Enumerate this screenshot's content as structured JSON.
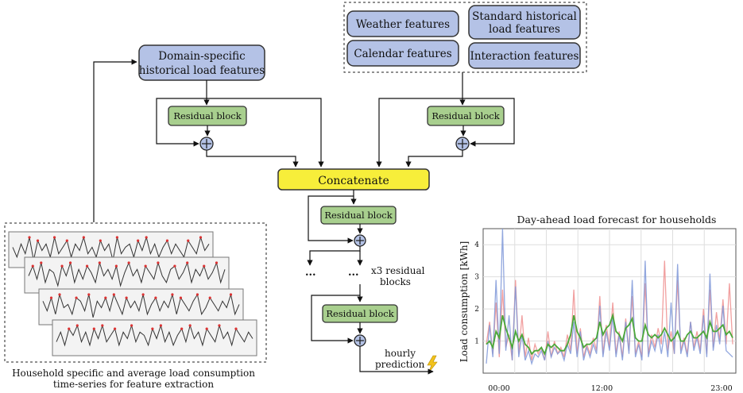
{
  "feature_group": {
    "weather": "Weather features",
    "standard_historical": [
      "Standard historical",
      "load features"
    ],
    "calendar": "Calendar features",
    "interaction": "Interaction features"
  },
  "domain_features": [
    "Domain-specific",
    "historical load features"
  ],
  "residual_label": "Residual block",
  "concatenate_label": "Concatenate",
  "repeat_note": [
    "x3 residual",
    "blocks"
  ],
  "ellipsis": "...",
  "output_label": [
    "hourly",
    "prediction"
  ],
  "input_caption": [
    "Household specific and average load consumption",
    "time-series for feature extraction"
  ],
  "colors": {
    "feature_box": "#b4c2e6",
    "residual_box": "#a8cf8e",
    "concat_box": "#f7ee3a",
    "forecast_blue": "#7f98d8",
    "forecast_red": "#ef8f8f",
    "forecast_green": "#4ba83a",
    "lightning": "#f2c21b"
  },
  "chart_data": {
    "type": "line",
    "title": "Day-ahead load forecast for households",
    "ylabel": "Load consumption [kWh]",
    "xlabel": "",
    "x_ticks": [
      "00:00",
      "12:00",
      "23:00"
    ],
    "y_ticks": [
      "1",
      "2",
      "3",
      "4"
    ],
    "ylim": [
      0,
      4.5
    ],
    "grid": true,
    "series": [
      {
        "color": "#ef8f8f",
        "values": [
          0.9,
          1.6,
          0.6,
          2.2,
          0.5,
          2.6,
          0.8,
          1.2,
          0.4,
          2.9,
          0.6,
          1.8,
          0.5,
          1.1,
          0.4,
          0.9,
          0.6,
          0.8,
          0.4,
          1.3,
          0.5,
          1.0,
          0.6,
          0.8,
          0.5,
          1.2,
          0.7,
          2.6,
          0.6,
          1.4,
          0.5,
          0.9,
          0.6,
          1.1,
          0.7,
          2.4,
          0.6,
          1.5,
          0.8,
          2.2,
          0.6,
          1.3,
          0.5,
          1.7,
          0.7,
          2.4,
          0.6,
          1.0,
          0.5,
          2.8,
          0.6,
          1.2,
          0.8,
          1.4,
          0.9,
          3.5,
          0.7,
          1.3,
          0.6,
          2.9,
          0.7,
          1.1,
          0.6,
          1.6,
          0.8,
          1.3,
          0.7,
          2.0,
          0.6,
          2.6,
          0.8,
          1.9,
          1.0,
          2.3,
          0.9,
          2.8,
          0.9
        ]
      },
      {
        "color": "#7f98d8",
        "values": [
          0.3,
          1.5,
          0.5,
          2.9,
          0.6,
          4.5,
          0.7,
          1.8,
          0.4,
          2.7,
          0.5,
          1.2,
          0.4,
          0.7,
          0.3,
          0.6,
          0.5,
          0.7,
          0.4,
          1.0,
          0.5,
          0.8,
          0.6,
          0.7,
          0.4,
          0.9,
          0.6,
          1.6,
          0.5,
          1.3,
          0.4,
          0.8,
          0.5,
          0.9,
          0.6,
          2.1,
          0.5,
          1.3,
          0.7,
          1.8,
          0.5,
          1.2,
          0.4,
          1.6,
          0.6,
          2.9,
          0.5,
          0.9,
          0.4,
          3.5,
          0.5,
          1.0,
          0.7,
          1.2,
          0.6,
          1.3,
          0.5,
          2.2,
          0.6,
          3.4,
          0.6,
          1.0,
          0.5,
          1.6,
          0.7,
          1.1,
          0.6,
          1.8,
          0.5,
          3.1,
          0.7,
          1.5,
          0.9,
          2.1,
          0.7,
          0.6,
          0.5
        ]
      },
      {
        "color": "#4ba83a",
        "values": [
          0.9,
          1.0,
          0.8,
          1.3,
          1.1,
          1.8,
          1.4,
          1.1,
          0.8,
          1.3,
          1.0,
          1.2,
          0.9,
          0.8,
          0.6,
          0.7,
          0.7,
          0.8,
          0.6,
          0.9,
          0.8,
          0.9,
          0.8,
          0.7,
          0.7,
          0.9,
          1.2,
          1.8,
          1.3,
          1.1,
          0.8,
          0.9,
          0.9,
          1.0,
          1.1,
          1.6,
          1.2,
          1.4,
          1.5,
          1.8,
          1.3,
          1.2,
          1.0,
          1.4,
          1.5,
          1.7,
          1.1,
          1.0,
          1.0,
          1.5,
          1.2,
          1.1,
          1.2,
          1.1,
          1.2,
          1.4,
          1.2,
          1.0,
          1.1,
          1.3,
          1.0,
          1.0,
          1.2,
          1.3,
          1.1,
          1.1,
          1.2,
          1.3,
          1.1,
          1.6,
          1.3,
          1.3,
          1.4,
          1.5,
          1.2,
          1.3,
          1.1
        ]
      }
    ]
  },
  "thumbnail_series": [
    [
      5,
      2,
      6,
      3,
      8,
      1,
      7,
      4,
      6,
      2,
      8,
      3,
      5,
      7,
      2,
      6,
      4,
      8,
      3,
      5,
      2,
      7,
      4,
      6,
      1,
      8,
      3,
      5,
      6,
      2,
      7,
      4,
      8,
      3,
      6,
      2,
      5,
      7,
      3,
      6,
      4,
      2,
      7,
      5,
      3,
      8,
      4,
      6
    ],
    [
      4,
      7,
      3,
      8,
      2,
      6,
      5,
      1,
      7,
      4,
      8,
      2,
      6,
      3,
      7,
      5,
      2,
      8,
      4,
      6,
      3,
      7,
      1,
      5,
      8,
      4,
      6,
      2,
      7,
      5,
      3,
      8,
      4,
      2,
      6,
      7,
      3,
      5,
      8,
      2,
      6,
      4,
      7,
      3,
      5,
      8,
      2,
      6
    ],
    [
      6,
      3,
      7,
      2,
      8,
      4,
      5,
      2,
      7,
      6,
      3,
      8,
      1,
      6,
      4,
      7,
      3,
      8,
      5,
      2,
      7,
      4,
      6,
      3,
      8,
      2,
      5,
      7,
      3,
      6,
      4,
      8,
      2,
      7,
      5,
      3,
      6,
      8,
      2,
      4,
      7,
      5,
      3,
      6,
      4,
      8,
      2,
      5
    ],
    [
      3,
      6,
      2,
      7,
      5,
      8,
      3,
      6,
      2,
      7,
      4,
      8,
      3,
      5,
      7,
      2,
      6,
      4,
      8,
      3,
      6,
      5,
      2,
      7,
      4,
      8,
      3,
      6,
      2,
      5,
      7,
      3,
      8,
      4,
      6,
      2,
      7,
      5,
      3,
      8,
      4,
      6,
      2,
      7,
      5,
      3,
      6,
      4
    ]
  ]
}
